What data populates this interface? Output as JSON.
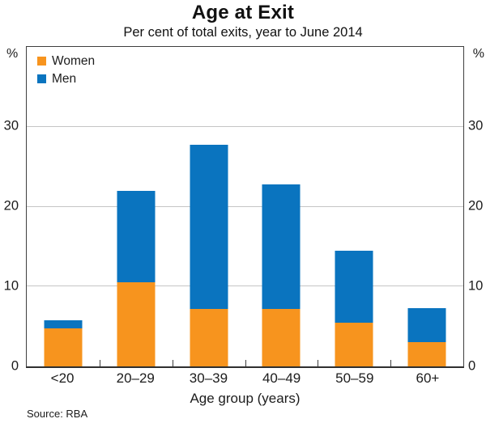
{
  "chart_data": {
    "type": "bar",
    "stacked": true,
    "title": "Age at Exit",
    "subtitle": "Per cent of total exits, year to June 2014",
    "categories": [
      "<20",
      "20–29",
      "30–39",
      "40–49",
      "50–59",
      "60+"
    ],
    "series": [
      {
        "name": "Women",
        "color": "#F7941E",
        "values": [
          4.8,
          10.5,
          7.2,
          7.2,
          5.5,
          3.0
        ]
      },
      {
        "name": "Men",
        "color": "#0A74BF",
        "values": [
          1.0,
          11.5,
          20.5,
          15.6,
          9.0,
          4.3
        ]
      }
    ],
    "xlabel": "Age group (years)",
    "ylabel_unit": "%",
    "ylim": [
      0,
      40
    ],
    "yticks": [
      0,
      10,
      20,
      30
    ],
    "grid": "horizontal",
    "legend_position": "top-left-inside",
    "source": "Source: RBA",
    "colors": {
      "women": "#F7941E",
      "men": "#0A74BF",
      "gridline": "#C5C5C5",
      "axis": "#3F3F3F",
      "text": "#1C1C1C"
    }
  }
}
